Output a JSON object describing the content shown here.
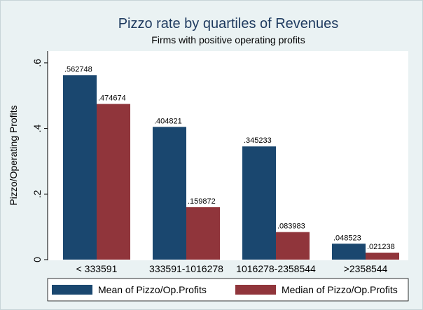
{
  "chart_data": {
    "type": "bar",
    "title": "Pizzo rate by quartiles of Revenues",
    "subtitle": "Firms with positive operating profits",
    "y_label": "Pizzo/Operating Profits",
    "categories": [
      "< 333591",
      "333591-1016278",
      "1016278-2358544",
      ">2358544"
    ],
    "series": [
      {
        "name": "Mean of Pizzo/Op.Profits",
        "color": "#1a476f",
        "values": [
          0.562748,
          0.404821,
          0.345233,
          0.048523
        ],
        "value_labels": [
          ".562748",
          ".404821",
          ".345233",
          ".048523"
        ]
      },
      {
        "name": "Median of Pizzo/Op.Profits",
        "color": "#90353b",
        "values": [
          0.474674,
          0.159872,
          0.083983,
          0.021238
        ],
        "value_labels": [
          ".474674",
          ".159872",
          ".083983",
          ".021238"
        ]
      }
    ],
    "ylim": [
      0,
      0.636
    ],
    "yticks": [
      0,
      {
        "value": 0.2,
        "label": ".2"
      },
      {
        "value": 0.4,
        "label": ".4"
      },
      {
        "value": 0.6,
        "label": ".6"
      }
    ],
    "legend": "bottom"
  }
}
